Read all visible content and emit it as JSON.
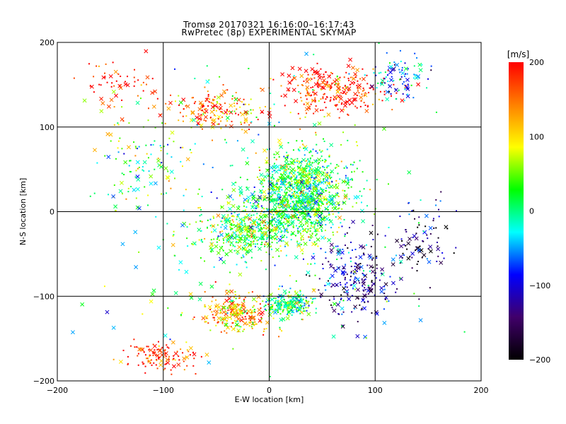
{
  "chart_data": {
    "type": "scatter",
    "title": "Tromsø 20170321 16:16:00–16:17:43",
    "subtitle": "RwPretec (8p) EXPERIMENTAL SKYMAP",
    "xlabel": "E-W location [km]",
    "ylabel": "N-S location [km]",
    "xlim": [
      -200,
      200
    ],
    "ylim": [
      -200,
      200
    ],
    "x_ticks": [
      -200,
      -100,
      0,
      100,
      200
    ],
    "y_ticks": [
      -200,
      -100,
      0,
      100,
      200
    ],
    "grid": true,
    "colorbar": {
      "label": "[m/s]",
      "range": [
        -200,
        200
      ],
      "ticks": [
        200,
        100,
        0,
        -100,
        -200
      ],
      "colormap": [
        "#000000",
        "#40006a",
        "#0000ff",
        "#00ffff",
        "#00ff00",
        "#ffff00",
        "#ff8000",
        "#ff0000"
      ]
    },
    "markers": [
      "cross (x)",
      "small dot"
    ],
    "clusters": [
      {
        "center": [
          30,
          20
        ],
        "spread": [
          35,
          45
        ],
        "velocity_mean": 20,
        "count": 1100
      },
      {
        "center": [
          -20,
          -20
        ],
        "spread": [
          40,
          30
        ],
        "velocity_mean": 40,
        "count": 450
      },
      {
        "center": [
          20,
          -110
        ],
        "spread": [
          20,
          12
        ],
        "velocity_mean": 10,
        "count": 220
      },
      {
        "center": [
          -30,
          -120
        ],
        "spread": [
          30,
          20
        ],
        "velocity_mean": 120,
        "count": 260
      },
      {
        "center": [
          -100,
          -170
        ],
        "spread": [
          30,
          15
        ],
        "velocity_mean": 190,
        "count": 120
      },
      {
        "center": [
          60,
          140
        ],
        "spread": [
          45,
          25
        ],
        "velocity_mean": 190,
        "count": 280
      },
      {
        "center": [
          -50,
          120
        ],
        "spread": [
          30,
          20
        ],
        "velocity_mean": 140,
        "count": 180
      },
      {
        "center": [
          120,
          160
        ],
        "spread": [
          25,
          25
        ],
        "velocity_mean": -60,
        "count": 90
      },
      {
        "center": [
          80,
          -80
        ],
        "spread": [
          30,
          40
        ],
        "velocity_mean": -120,
        "count": 230
      },
      {
        "center": [
          140,
          -40
        ],
        "spread": [
          30,
          40
        ],
        "velocity_mean": -150,
        "count": 90
      },
      {
        "center": [
          -120,
          60
        ],
        "spread": [
          40,
          50
        ],
        "velocity_mean": 30,
        "count": 110
      },
      {
        "center": [
          -140,
          150
        ],
        "spread": [
          30,
          30
        ],
        "velocity_mean": 190,
        "count": 60
      },
      {
        "center": [
          0,
          0
        ],
        "spread": [
          140,
          140
        ],
        "velocity_mean": 0,
        "count": 250
      }
    ]
  }
}
